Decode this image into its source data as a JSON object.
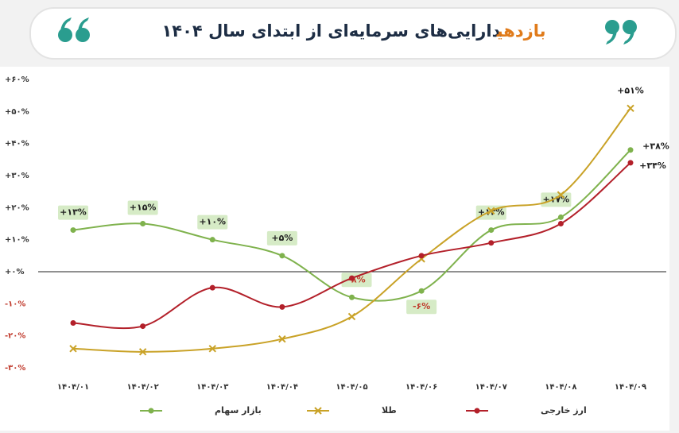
{
  "chart_data": {
    "type": "line",
    "title_highlight": "بازدهی",
    "title": "دارایی‌های سرمایه‌ای از ابتدای سال ۱۴۰۴",
    "categories": [
      "۱۴۰۴/۰۱",
      "۱۴۰۴/۰۲",
      "۱۴۰۴/۰۳",
      "۱۴۰۴/۰۴",
      "۱۴۰۴/۰۵",
      "۱۴۰۴/۰۶",
      "۱۴۰۴/۰۷",
      "۱۴۰۴/۰۸",
      "۱۴۰۴/۰۹"
    ],
    "series": [
      {
        "name": "بازار سهام",
        "color": "#7fb24d",
        "marker": "circle",
        "values": [
          13,
          15,
          10,
          5,
          -8,
          -6,
          13,
          17,
          38
        ],
        "value_labels": [
          "+۱۳%",
          "+۱۵%",
          "+۱۰%",
          "+۵%",
          "-۸%",
          "-۶%",
          "+۱۳%",
          "+۱۷%",
          "+۳۸%"
        ]
      },
      {
        "name": "طلا",
        "color": "#c9a227",
        "marker": "x",
        "values": [
          -24,
          -25,
          -24,
          -21,
          -14,
          4,
          19,
          24,
          51
        ],
        "value_labels": [
          null,
          null,
          null,
          null,
          null,
          null,
          null,
          null,
          "+۵۱%"
        ]
      },
      {
        "name": "ارز خارجی",
        "color": "#b3202a",
        "marker": "circle",
        "values": [
          -16,
          -17,
          -5,
          -11,
          -2,
          5,
          9,
          15,
          34
        ],
        "value_labels": [
          null,
          null,
          null,
          null,
          null,
          null,
          null,
          null,
          "+۳۴%"
        ]
      }
    ],
    "ylim": [
      -30,
      60
    ],
    "yticks": [
      {
        "value": 60,
        "label": "+۶۰%"
      },
      {
        "value": 50,
        "label": "+۵۰%"
      },
      {
        "value": 40,
        "label": "+۴۰%"
      },
      {
        "value": 30,
        "label": "+۳۰%"
      },
      {
        "value": 20,
        "label": "+۲۰%"
      },
      {
        "value": 10,
        "label": "+۱۰%"
      },
      {
        "value": 0,
        "label": "+۰%"
      },
      {
        "value": -10,
        "label": "-۱۰%"
      },
      {
        "value": -20,
        "label": "-۲۰%"
      },
      {
        "value": -30,
        "label": "-۳۰%"
      }
    ],
    "grid": false,
    "legend": "bottom"
  }
}
